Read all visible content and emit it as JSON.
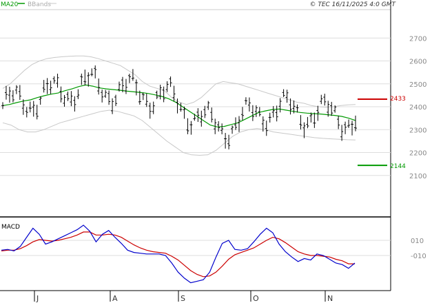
{
  "header": {
    "legend_ma": "MA20",
    "legend_bbands": "BBands",
    "copyright": "© TEC 16/11/2025 4:0 GMT"
  },
  "colors": {
    "ma": "#009900",
    "bbands": "#c8c8c8",
    "price": "#000000",
    "macd": "#0000cc",
    "signal": "#cc0000",
    "resistance": "#cc0000",
    "support": "#009900",
    "grid": "#dddddd",
    "axis": "#000000"
  },
  "chart_data": [
    {
      "type": "ohlc",
      "panel": "price",
      "y_ticks": [
        "2700",
        "2600",
        "2500",
        "2400",
        "2300",
        "2200",
        "2100"
      ],
      "x_ticks": [
        "J",
        "A",
        "S",
        "O",
        "N"
      ],
      "ylim": [
        2000,
        2800
      ],
      "series": [
        {
          "name": "MA20",
          "values": [
            2405,
            2410,
            2418,
            2425,
            2430,
            2440,
            2448,
            2455,
            2460,
            2470,
            2478,
            2488,
            2495,
            2490,
            2482,
            2478,
            2475,
            2472,
            2468,
            2465,
            2462,
            2458,
            2452,
            2445,
            2435,
            2420,
            2400,
            2380,
            2360,
            2340,
            2320,
            2312,
            2314,
            2322,
            2330,
            2345,
            2360,
            2375,
            2382,
            2388,
            2390,
            2385,
            2380,
            2375,
            2372,
            2370,
            2368,
            2365,
            2362,
            2358,
            2350,
            2340
          ]
        },
        {
          "name": "BBands upper",
          "values": [
            2480,
            2500,
            2530,
            2560,
            2585,
            2600,
            2610,
            2615,
            2618,
            2620,
            2622,
            2622,
            2618,
            2610,
            2600,
            2590,
            2580,
            2560,
            2540,
            2510,
            2490,
            2480,
            2470,
            2440,
            2420,
            2410,
            2420,
            2440,
            2470,
            2500,
            2510,
            2505,
            2500,
            2490,
            2480,
            2470,
            2460,
            2450,
            2440,
            2430,
            2420,
            2415,
            2405,
            2400,
            2398,
            2400,
            2405,
            2408,
            2410
          ]
        },
        {
          "name": "BBands lower",
          "values": [
            2330,
            2320,
            2300,
            2290,
            2290,
            2300,
            2315,
            2330,
            2340,
            2350,
            2360,
            2370,
            2380,
            2385,
            2380,
            2370,
            2360,
            2340,
            2310,
            2280,
            2250,
            2225,
            2200,
            2190,
            2188,
            2190,
            2210,
            2240,
            2270,
            2290,
            2300,
            2305,
            2300,
            2290,
            2285,
            2280,
            2275,
            2270,
            2265,
            2262,
            2260,
            2258,
            2256,
            2255
          ]
        }
      ]
    },
    {
      "type": "line",
      "panel": "macd",
      "title": "MACD",
      "y_ticks": [
        "010",
        "-010"
      ],
      "series": [
        {
          "name": "MACD",
          "values": [
            -3,
            -2,
            -4,
            2,
            14,
            26,
            18,
            5,
            8,
            12,
            16,
            20,
            24,
            30,
            22,
            8,
            18,
            23,
            14,
            6,
            -3,
            -6,
            -7,
            -8,
            -8,
            -8,
            -10,
            -20,
            -32,
            -40,
            -46,
            -44,
            -42,
            -32,
            -12,
            6,
            10,
            -2,
            -3,
            -1,
            8,
            18,
            26,
            20,
            5,
            -5,
            -12,
            -18,
            -14,
            -16,
            -8,
            -10,
            -15,
            -20,
            -22,
            -27,
            -20
          ]
        },
        {
          "name": "Signal",
          "values": [
            -4,
            -3,
            -3,
            -1,
            3,
            8,
            11,
            10,
            9,
            10,
            12,
            14,
            17,
            21,
            21,
            17,
            17,
            18,
            17,
            14,
            9,
            4,
            0,
            -3,
            -5,
            -6,
            -7,
            -11,
            -16,
            -23,
            -30,
            -35,
            -38,
            -37,
            -32,
            -24,
            -15,
            -9,
            -6,
            -3,
            0,
            5,
            10,
            14,
            12,
            7,
            1,
            -5,
            -8,
            -10,
            -10,
            -11,
            -12,
            -15,
            -17,
            -21,
            -21
          ]
        }
      ]
    }
  ],
  "levels": {
    "resistance": "2433",
    "support": "2144"
  }
}
